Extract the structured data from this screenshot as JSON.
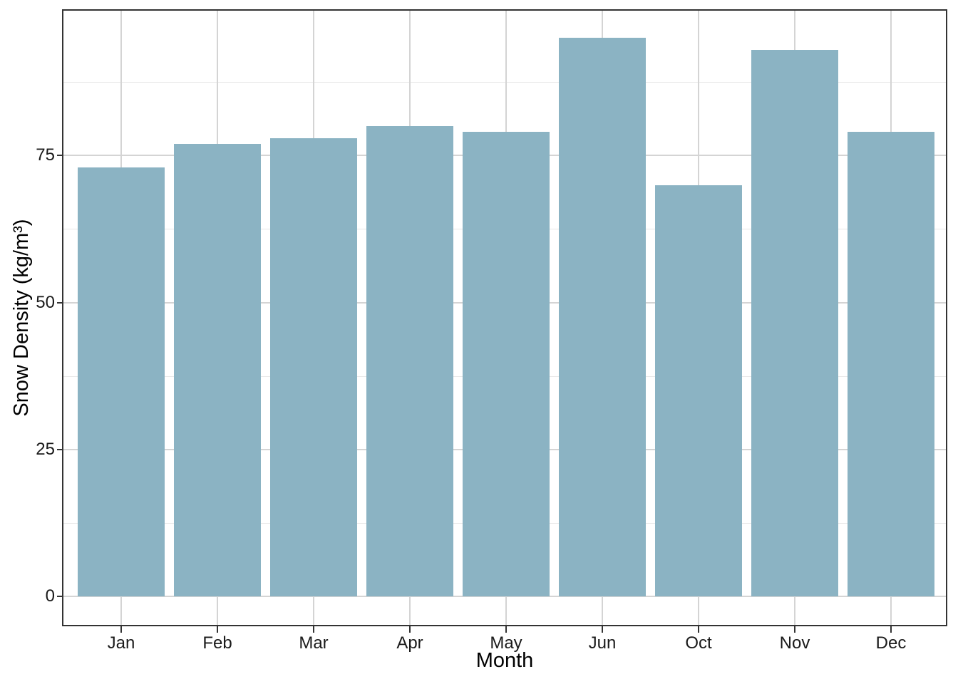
{
  "chart_data": {
    "type": "bar",
    "title": "",
    "categories": [
      "Jan",
      "Feb",
      "Mar",
      "Apr",
      "May",
      "Jun",
      "Oct",
      "Nov",
      "Dec"
    ],
    "values": [
      73,
      77,
      78,
      80,
      79,
      95,
      70,
      93,
      79
    ],
    "xlabel": "Month",
    "ylabel": "Snow Density (kg/m³)",
    "yticks": [
      0,
      25,
      50,
      75
    ],
    "y_minor_gridlines": [
      12.5,
      37.5,
      62.5,
      87.5
    ],
    "ylim": [
      0,
      95
    ],
    "ylim_display": [
      -4.85,
      99.65
    ],
    "grid": "horizontal major+minor, vertical major at category centers, drawn behind bars",
    "legend": "none",
    "colors": {
      "bar_fill": "#8bb3c3",
      "panel_border": "#333333",
      "major_grid": "#d4d4d4",
      "minor_grid": "#e8e8e8",
      "tick_mark": "#333333",
      "tick_text": "#1a1a1a",
      "title_text": "#000000",
      "background": "#ffffff"
    }
  }
}
